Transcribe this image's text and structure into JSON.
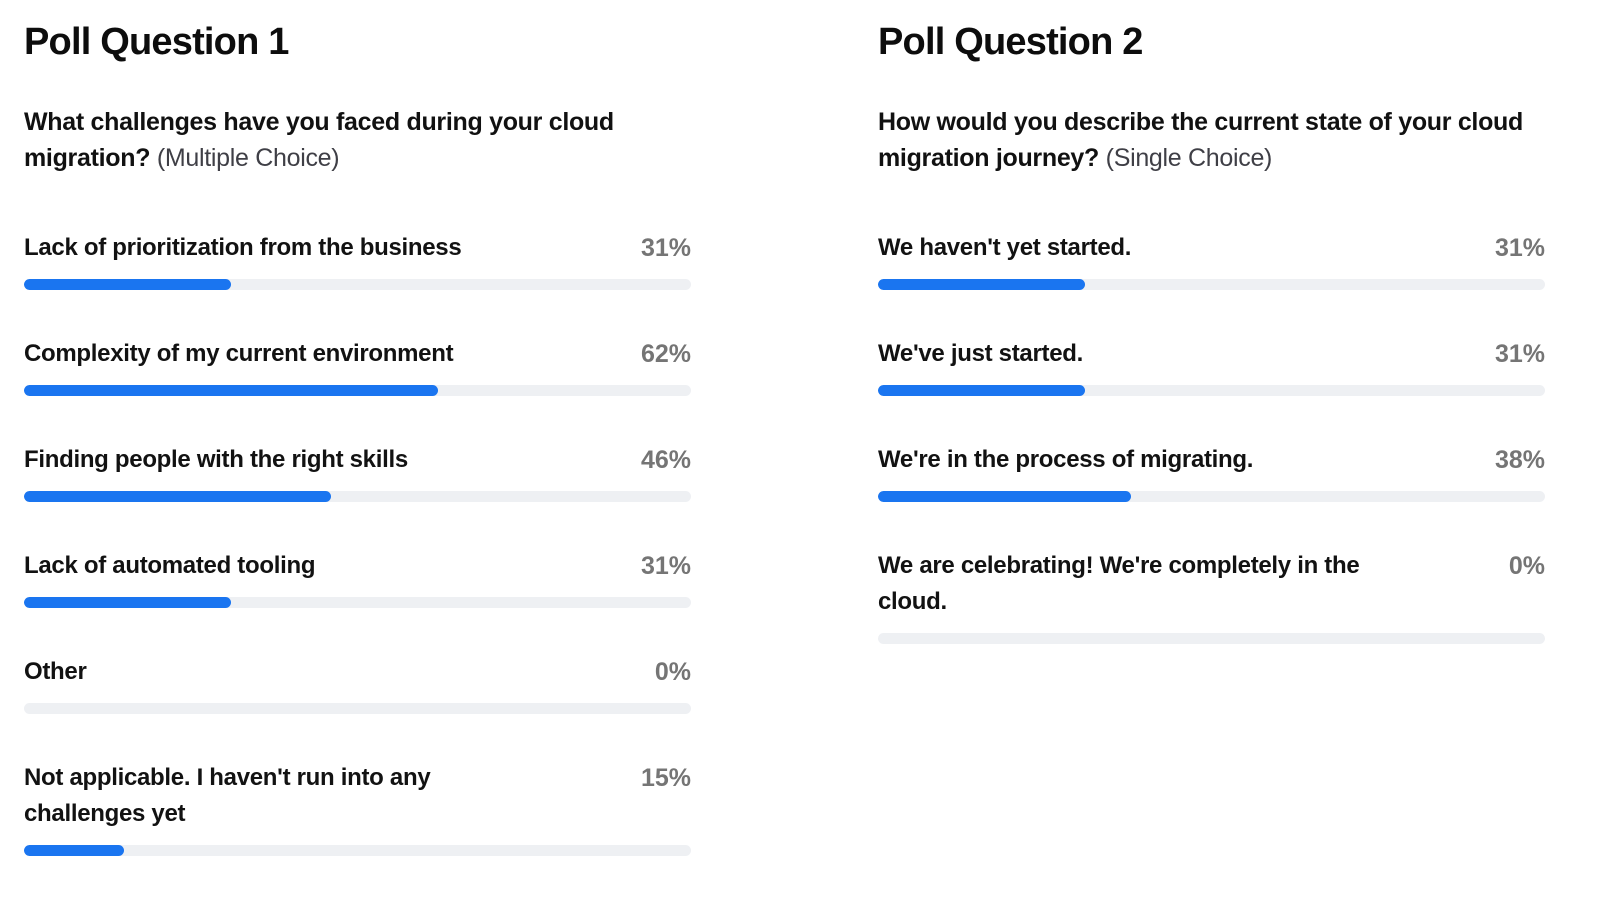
{
  "colors": {
    "bar_fill": "#1a75f0",
    "bar_track": "#eef0f3",
    "percent_text": "#757575",
    "label_text": "#121212",
    "background": "#ffffff"
  },
  "polls": [
    {
      "title": "Poll Question 1",
      "question": "What challenges have you faced during your cloud migration?",
      "type_label": "(Multiple Choice)",
      "options": [
        {
          "label": "Lack of prioritization from the business",
          "percent_label": "31%",
          "value": 31
        },
        {
          "label": "Complexity of my current environment",
          "percent_label": "62%",
          "value": 62
        },
        {
          "label": "Finding people with the right skills",
          "percent_label": "46%",
          "value": 46
        },
        {
          "label": "Lack of automated tooling",
          "percent_label": "31%",
          "value": 31
        },
        {
          "label": "Other",
          "percent_label": "0%",
          "value": 0
        },
        {
          "label": "Not applicable. I haven't run into any challenges yet",
          "percent_label": "15%",
          "value": 15
        }
      ]
    },
    {
      "title": "Poll Question 2",
      "question": "How would you describe the current state of your cloud migration journey?",
      "type_label": "(Single Choice)",
      "options": [
        {
          "label": "We haven't yet started.",
          "percent_label": "31%",
          "value": 31
        },
        {
          "label": "We've just started.",
          "percent_label": "31%",
          "value": 31
        },
        {
          "label": "We're in the process of migrating.",
          "percent_label": "38%",
          "value": 38
        },
        {
          "label": "We are celebrating! We're completely in the cloud.",
          "percent_label": "0%",
          "value": 0
        }
      ]
    }
  ],
  "chart_data": [
    {
      "type": "bar",
      "orientation": "horizontal",
      "title": "Poll Question 1",
      "subtitle": "What challenges have you faced during your cloud migration? (Multiple Choice)",
      "categories": [
        "Lack of prioritization from the business",
        "Complexity of my current environment",
        "Finding people with the right skills",
        "Lack of automated tooling",
        "Other",
        "Not applicable. I haven't run into any challenges yet"
      ],
      "values": [
        31,
        62,
        46,
        31,
        0,
        15
      ],
      "unit": "%",
      "xlim": [
        0,
        100
      ],
      "grid": false,
      "legend": false,
      "data_labels": "right-aligned percent per bar"
    },
    {
      "type": "bar",
      "orientation": "horizontal",
      "title": "Poll Question 2",
      "subtitle": "How would you describe the current state of your cloud migration journey? (Single Choice)",
      "categories": [
        "We haven't yet started.",
        "We've just started.",
        "We're in the process of migrating.",
        "We are celebrating! We're completely in the cloud."
      ],
      "values": [
        31,
        31,
        38,
        0
      ],
      "unit": "%",
      "xlim": [
        0,
        100
      ],
      "grid": false,
      "legend": false,
      "data_labels": "right-aligned percent per bar"
    }
  ]
}
